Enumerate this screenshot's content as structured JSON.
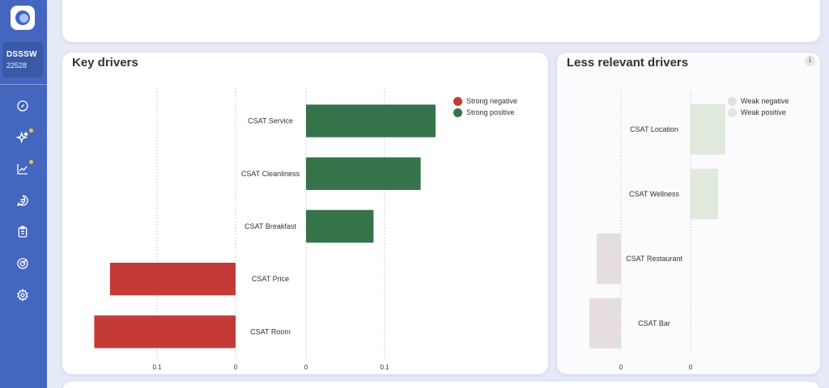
{
  "sidebar": {
    "account": {
      "name": "DSSSW",
      "id": "22528"
    },
    "nav": [
      {
        "icon": "compass-icon",
        "badge": false
      },
      {
        "icon": "sparkles-icon",
        "badge": true
      },
      {
        "icon": "trend-chart-icon",
        "badge": true
      },
      {
        "icon": "chat-icon",
        "badge": false
      },
      {
        "icon": "clipboard-icon",
        "badge": false
      },
      {
        "icon": "target-icon",
        "badge": false
      },
      {
        "icon": "settings-icon",
        "badge": false
      }
    ],
    "badge_color": "#f5c63b"
  },
  "key_drivers": {
    "title": "Key drivers",
    "legend": [
      {
        "label": "Strong negative",
        "color": "#c43a36"
      },
      {
        "label": "Strong positive",
        "color": "#35744a"
      }
    ]
  },
  "less_relevant": {
    "title": "Less relevant drivers",
    "info": "i",
    "legend": [
      {
        "label": "Weak negative",
        "color": "#e6dede"
      },
      {
        "label": "Weak positive",
        "color": "#dfe9dc"
      }
    ]
  },
  "chart_data": [
    {
      "type": "bar",
      "orientation": "horizontal",
      "title": "Key drivers",
      "categories": [
        "CSAT Service",
        "CSAT Cleanliness",
        "CSAT Breakfast",
        "CSAT Price",
        "CSAT Room"
      ],
      "series": [
        {
          "name": "Strong negative",
          "color": "#c43a36",
          "values": [
            0,
            0,
            0,
            0.16,
            0.18
          ]
        },
        {
          "name": "Strong positive",
          "color": "#35744a",
          "values": [
            0.165,
            0.146,
            0.086,
            0,
            0
          ]
        }
      ],
      "negative_axis": {
        "ticks": [
          "0.1",
          "0"
        ],
        "range": [
          0.2,
          0
        ]
      },
      "positive_axis": {
        "ticks": [
          "0",
          "0.1"
        ],
        "range": [
          0,
          0.2
        ]
      },
      "grid": true,
      "legend": "top-right"
    },
    {
      "type": "bar",
      "orientation": "horizontal",
      "title": "Less relevant drivers",
      "categories": [
        "CSAT Location",
        "CSAT Wellness",
        "CSAT Restaurant",
        "CSAT Bar"
      ],
      "series": [
        {
          "name": "Weak negative",
          "color": "#e6dede",
          "values": [
            0,
            0,
            0.03,
            0.039
          ]
        },
        {
          "name": "Weak positive",
          "color": "#dfe9dc",
          "values": [
            0.043,
            0.034,
            0,
            0
          ]
        }
      ],
      "negative_axis": {
        "ticks": [
          "0"
        ]
      },
      "positive_axis": {
        "ticks": [
          "0"
        ]
      },
      "grid": true,
      "legend": "top-right"
    }
  ]
}
